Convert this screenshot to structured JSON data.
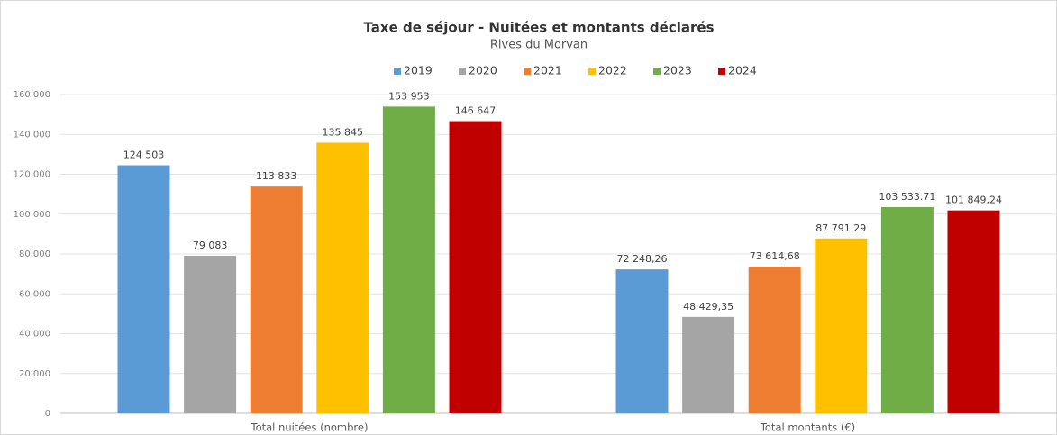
{
  "chart_data": {
    "type": "bar",
    "title": "Taxe de séjour - Nuitées et montants déclarés",
    "subtitle": "Rives du Morvan",
    "categories": [
      "Total nuitées (nombre)",
      "Total montants (€)"
    ],
    "series": [
      {
        "name": "2019",
        "color": "#5b9bd5",
        "values": [
          124503,
          72248.26
        ],
        "value_labels": [
          "124 503",
          "72 248,26"
        ]
      },
      {
        "name": "2020",
        "color": "#a5a5a5",
        "values": [
          79083,
          48429.35
        ],
        "value_labels": [
          "79 083",
          "48 429,35"
        ]
      },
      {
        "name": "2021",
        "color": "#ed7d31",
        "values": [
          113833,
          73614.68
        ],
        "value_labels": [
          "113 833",
          "73 614,68"
        ]
      },
      {
        "name": "2022",
        "color": "#ffc000",
        "values": [
          135845,
          87791.29
        ],
        "value_labels": [
          "135 845",
          "87 791.29"
        ]
      },
      {
        "name": "2023",
        "color": "#70ad47",
        "values": [
          153953,
          103533.71
        ],
        "value_labels": [
          "153 953",
          "103 533.71"
        ]
      },
      {
        "name": "2024",
        "color": "#c00000",
        "values": [
          146647,
          101849.24
        ],
        "value_labels": [
          "146 647",
          "101 849,24"
        ]
      }
    ],
    "ylim": [
      0,
      160000
    ],
    "yticks": [
      0,
      {
        "value": 20000,
        "label": "20 000"
      },
      {
        "value": 40000,
        "label": "40 000"
      },
      {
        "value": 60000,
        "label": "60 000"
      },
      {
        "value": 80000,
        "label": "80 000"
      },
      {
        "value": 100000,
        "label": "100 000"
      },
      {
        "value": 120000,
        "label": "120 000"
      },
      {
        "value": 140000,
        "label": "140 000"
      },
      {
        "value": 160000,
        "label": "160 000"
      }
    ],
    "grid": true,
    "legend": "top"
  }
}
